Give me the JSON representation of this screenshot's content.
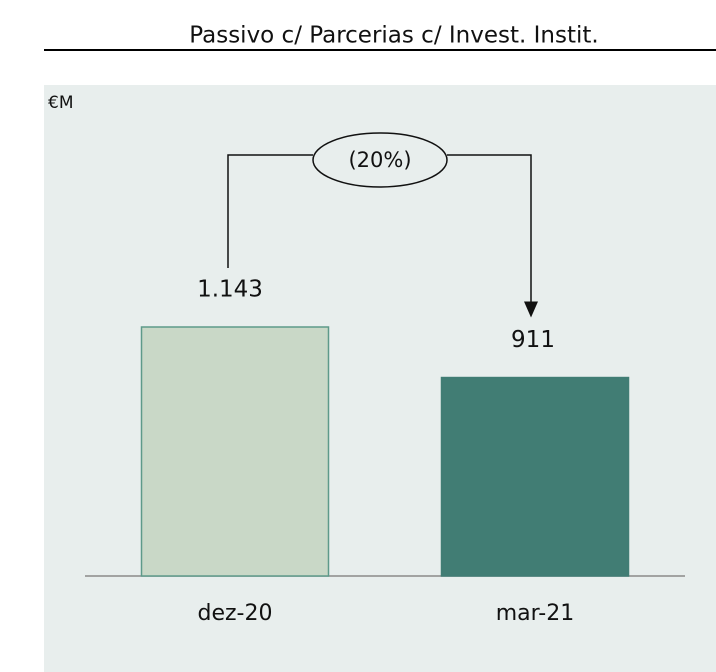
{
  "chart_data": {
    "type": "bar",
    "title": "Passivo c/ Parcerias c/ Invest. Instit.",
    "unit_label": "€M",
    "categories": [
      "dez-20",
      "mar-21"
    ],
    "values": [
      1143,
      911
    ],
    "value_labels": [
      "1.143",
      "911"
    ],
    "colors": [
      "#c9d8c7",
      "#417d74"
    ],
    "edgecolors": [
      "#5e9a8a",
      "#417d74"
    ],
    "annotation": "(20%)"
  }
}
